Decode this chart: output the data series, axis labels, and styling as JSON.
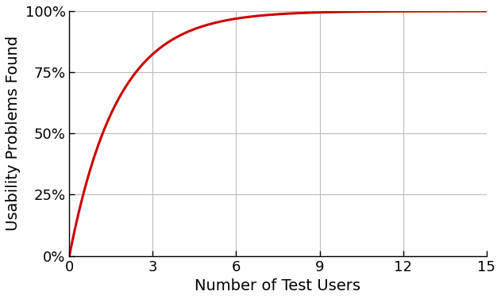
{
  "title": "",
  "xlabel": "Number of Test Users",
  "ylabel": "Usability Problems Found",
  "line_color": "#cc0000",
  "line_width": 2.2,
  "background_color": "#ffffff",
  "grid_color": "#bbbbbb",
  "xlim": [
    0,
    15
  ],
  "ylim": [
    0,
    1.0
  ],
  "xticks": [
    0,
    3,
    6,
    9,
    12,
    15
  ],
  "yticks": [
    0.0,
    0.25,
    0.5,
    0.75,
    1.0
  ],
  "ytick_labels": [
    "0%",
    "25%",
    "50%",
    "75%",
    "100%"
  ],
  "xlabel_fontsize": 14,
  "ylabel_fontsize": 14,
  "tick_fontsize": 13,
  "p": 0.44,
  "n_points": 1000
}
